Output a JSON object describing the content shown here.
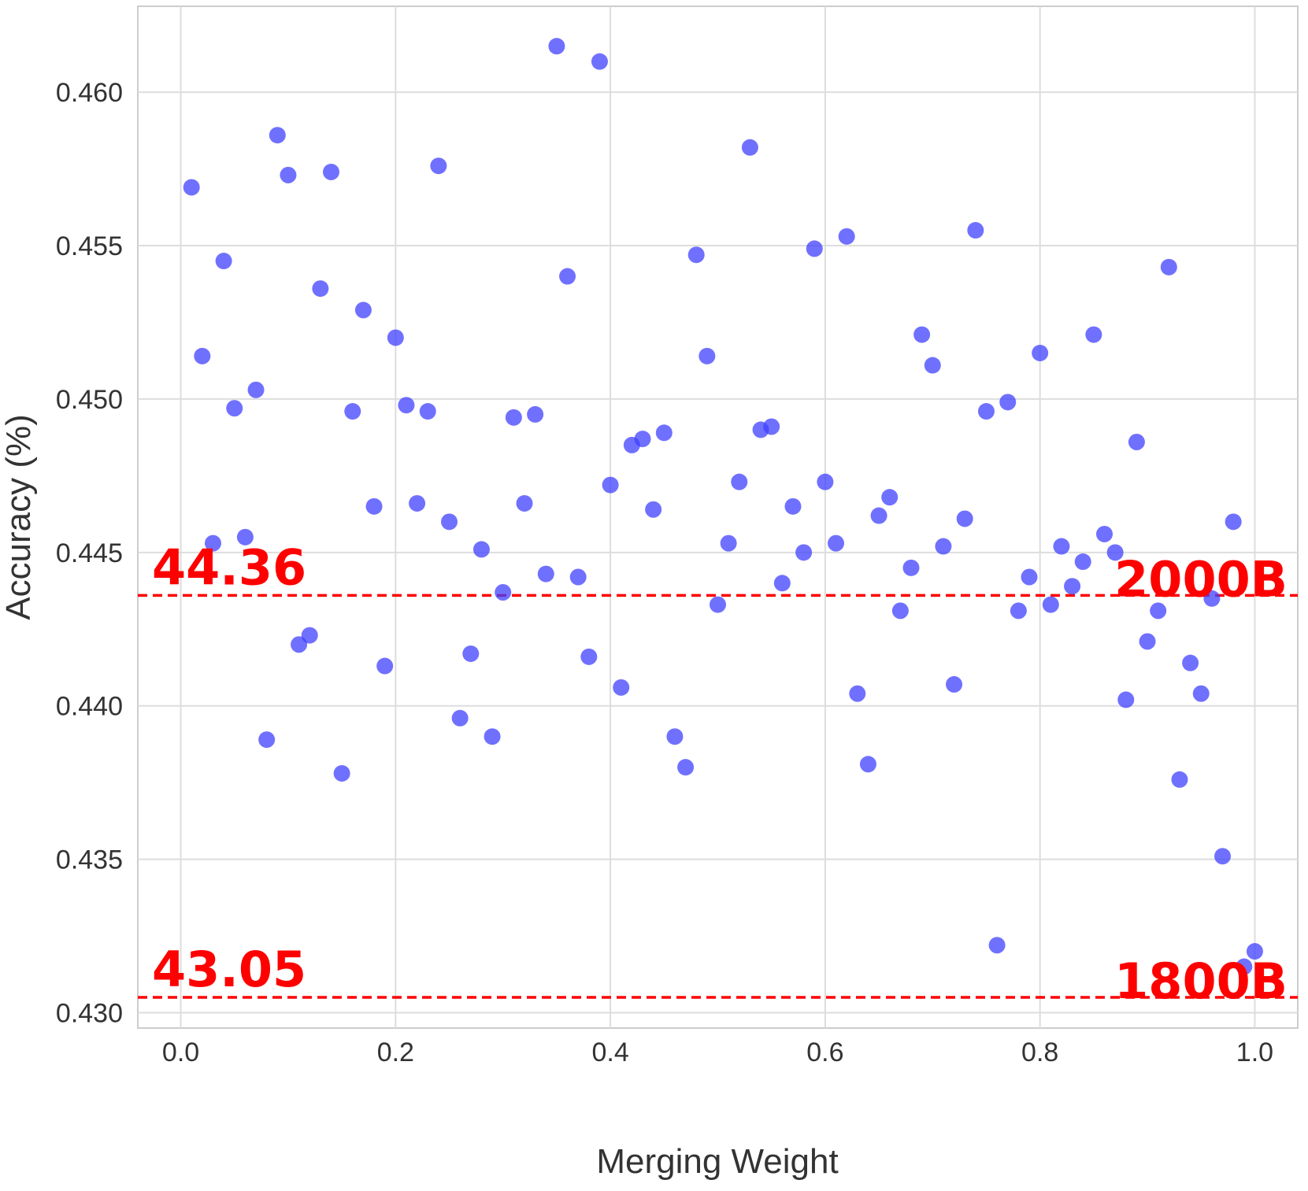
{
  "chart_data": {
    "type": "scatter",
    "title": "",
    "xlabel": "Merging Weight",
    "ylabel": "Accuracy (%)",
    "xlim": [
      -0.04,
      1.04
    ],
    "ylim": [
      0.4295,
      0.4628
    ],
    "x_ticks": [
      0.0,
      0.2,
      0.4,
      0.6,
      0.8,
      1.0
    ],
    "x_tick_labels": [
      "0.0",
      "0.2",
      "0.4",
      "0.6",
      "0.8",
      "1.0"
    ],
    "y_ticks": [
      0.43,
      0.435,
      0.44,
      0.445,
      0.45,
      0.455,
      0.46
    ],
    "y_tick_labels": [
      "0.430",
      "0.435",
      "0.440",
      "0.445",
      "0.450",
      "0.455",
      "0.460"
    ],
    "grid": true,
    "point_color": "#4040ff",
    "series": [
      {
        "x": [
          0.01,
          0.02,
          0.03,
          0.04,
          0.05,
          0.06,
          0.07,
          0.08,
          0.09,
          0.1,
          0.11,
          0.12,
          0.13,
          0.14,
          0.15,
          0.16,
          0.17,
          0.18,
          0.19,
          0.2,
          0.21,
          0.22,
          0.23,
          0.24,
          0.25,
          0.26,
          0.27,
          0.28,
          0.29,
          0.3,
          0.31,
          0.32,
          0.33,
          0.34,
          0.35,
          0.36,
          0.37,
          0.38,
          0.39,
          0.4,
          0.41,
          0.42,
          0.43,
          0.44,
          0.45,
          0.46,
          0.47,
          0.48,
          0.49,
          0.5,
          0.51,
          0.52,
          0.53,
          0.54,
          0.55,
          0.56,
          0.57,
          0.58,
          0.59,
          0.6,
          0.61,
          0.62,
          0.63,
          0.64,
          0.65,
          0.66,
          0.67,
          0.68,
          0.69,
          0.7,
          0.71,
          0.72,
          0.73,
          0.74,
          0.75,
          0.76,
          0.77,
          0.78,
          0.79,
          0.8,
          0.81,
          0.82,
          0.83,
          0.84,
          0.85,
          0.86,
          0.87,
          0.88,
          0.89,
          0.9,
          0.91,
          0.92,
          0.93,
          0.94,
          0.95,
          0.96,
          0.97,
          0.98,
          0.99,
          1.0
        ],
        "y": [
          0.4569,
          0.4514,
          0.4453,
          0.4545,
          0.4497,
          0.4455,
          0.4503,
          0.4389,
          0.4586,
          0.4573,
          0.442,
          0.4423,
          0.4536,
          0.4574,
          0.4378,
          0.4496,
          0.4529,
          0.4465,
          0.4413,
          0.452,
          0.4498,
          0.4466,
          0.4496,
          0.4576,
          0.446,
          0.4396,
          0.4417,
          0.4451,
          0.439,
          0.4437,
          0.4494,
          0.4466,
          0.4495,
          0.4443,
          0.4615,
          0.454,
          0.4442,
          0.4416,
          0.461,
          0.4472,
          0.4406,
          0.4485,
          0.4487,
          0.4464,
          0.4489,
          0.439,
          0.438,
          0.4547,
          0.4514,
          0.4433,
          0.4453,
          0.4473,
          0.4582,
          0.449,
          0.4491,
          0.444,
          0.4465,
          0.445,
          0.4549,
          0.4473,
          0.4453,
          0.4553,
          0.4404,
          0.4381,
          0.4462,
          0.4468,
          0.4431,
          0.4445,
          0.4521,
          0.4511,
          0.4452,
          0.4407,
          0.4461,
          0.4555,
          0.4496,
          0.4322,
          0.4499,
          0.4431,
          0.4442,
          0.4515,
          0.4433,
          0.4452,
          0.4439,
          0.4447,
          0.4521,
          0.4456,
          0.445,
          0.4402,
          0.4486,
          0.4421,
          0.4431,
          0.4543,
          0.4376,
          0.4414,
          0.4404,
          0.4435,
          0.4351,
          0.446,
          0.4315,
          0.432
        ]
      }
    ],
    "reference_lines": [
      {
        "y": 0.4436,
        "color": "#ff0000",
        "style": "dashed",
        "left_label": "44.36",
        "right_label": "2000B"
      },
      {
        "y": 0.4305,
        "color": "#ff0000",
        "style": "dashed",
        "left_label": "43.05",
        "right_label": "1800B"
      }
    ]
  }
}
